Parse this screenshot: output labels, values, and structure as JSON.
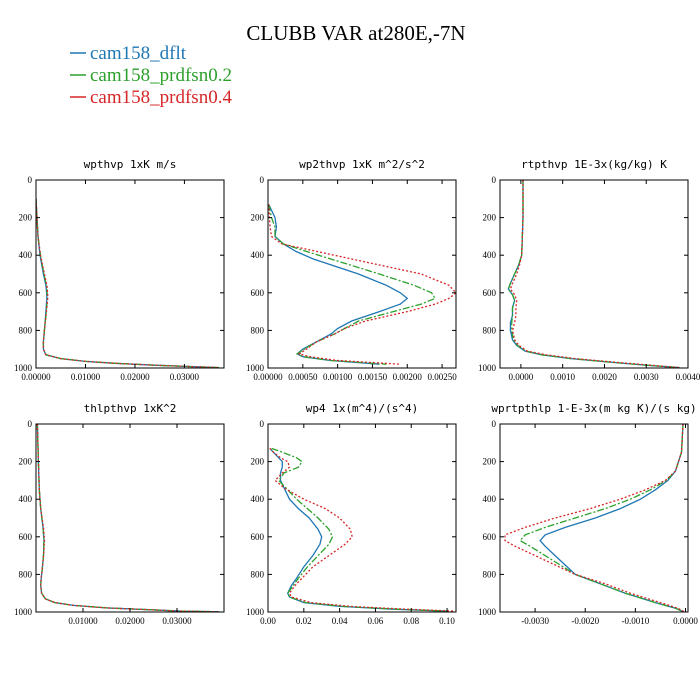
{
  "figure": {
    "title": "CLUBB VAR at280E,-7N",
    "legend": [
      {
        "label": "cam158_dflt",
        "color": "#1f77b4",
        "dash": "solid"
      },
      {
        "label": "cam158_prdfsn0.2",
        "color": "#2ca02c",
        "dash": "dashdot"
      },
      {
        "label": "cam158_prdfsn0.4",
        "color": "#d62728",
        "dash": "dotted"
      }
    ]
  },
  "chart_data": [
    {
      "type": "line",
      "title": "wpthvp  1xK m/s",
      "xlim": [
        0,
        0.038
      ],
      "ylim": [
        1000,
        0
      ],
      "xticks": [
        "0.00000",
        "0.01000",
        "0.02000",
        "0.03000"
      ],
      "xtick_values": [
        0,
        0.01,
        0.02,
        0.03
      ],
      "yticks": [
        0,
        200,
        400,
        600,
        800,
        1000
      ],
      "y": [
        100,
        200,
        300,
        400,
        500,
        560,
        620,
        700,
        800,
        860,
        900,
        930,
        950,
        965,
        975,
        985,
        992,
        998
      ],
      "series": [
        {
          "name": "cam158_dflt",
          "x": [
            0,
            0.0002,
            0.0004,
            0.0008,
            0.0015,
            0.002,
            0.0022,
            0.002,
            0.0017,
            0.0015,
            0.0015,
            0.002,
            0.005,
            0.01,
            0.016,
            0.024,
            0.031,
            0.037
          ]
        },
        {
          "name": "cam158_prdfsn0.2",
          "x": [
            0,
            0.0002,
            0.0004,
            0.0009,
            0.0016,
            0.0021,
            0.0023,
            0.0021,
            0.0017,
            0.0015,
            0.0015,
            0.002,
            0.005,
            0.01,
            0.016,
            0.024,
            0.031,
            0.037
          ]
        },
        {
          "name": "cam158_prdfsn0.4",
          "x": [
            0,
            0.0002,
            0.0004,
            0.0009,
            0.0017,
            0.0022,
            0.0024,
            0.0021,
            0.0017,
            0.0015,
            0.0015,
            0.002,
            0.005,
            0.01,
            0.016,
            0.024,
            0.031,
            0.037
          ]
        }
      ]
    },
    {
      "type": "line",
      "title": "wp2thvp  1xK m^2/s^2",
      "xlim": [
        0,
        0.0027
      ],
      "ylim": [
        1000,
        0
      ],
      "xticks": [
        "0.00000",
        "0.00050",
        "0.00100",
        "0.00150",
        "0.00200",
        "0.00250"
      ],
      "xtick_values": [
        0,
        0.0005,
        0.001,
        0.0015,
        0.002,
        0.0025
      ],
      "yticks": [
        0,
        200,
        400,
        600,
        800,
        1000
      ],
      "y": [
        130,
        200,
        250,
        300,
        340,
        380,
        420,
        500,
        560,
        600,
        630,
        660,
        700,
        750,
        790,
        820,
        860,
        900,
        925,
        940,
        960,
        980
      ],
      "series": [
        {
          "name": "cam158_dflt",
          "x": [
            1e-05,
            0.0001,
            0.00012,
            0.0001,
            0.00022,
            0.0004,
            0.00065,
            0.0013,
            0.0017,
            0.0019,
            0.002,
            0.0019,
            0.0016,
            0.0012,
            0.001,
            0.0009,
            0.0007,
            0.0005,
            0.00042,
            0.0005,
            0.0009,
            0.0016
          ]
        },
        {
          "name": "cam158_prdfsn0.2",
          "x": [
            1e-05,
            5e-05,
            0.0001,
            0.0001,
            0.00022,
            0.00055,
            0.0009,
            0.0016,
            0.0021,
            0.00235,
            0.0024,
            0.0022,
            0.0018,
            0.0013,
            0.0011,
            0.00095,
            0.0007,
            0.00052,
            0.00042,
            0.0005,
            0.0009,
            0.0017
          ]
        },
        {
          "name": "cam158_prdfsn0.4",
          "x": [
            1e-05,
            2e-05,
            3e-05,
            5e-05,
            0.0002,
            0.0007,
            0.0012,
            0.0022,
            0.0026,
            0.0027,
            0.0026,
            0.0024,
            0.002,
            0.0014,
            0.0011,
            0.00095,
            0.0007,
            0.00055,
            0.00045,
            0.0006,
            0.001,
            0.0019
          ]
        }
      ]
    },
    {
      "type": "line",
      "title": "rtpthvp  1E-3x(kg/kg) K",
      "xlim": [
        -0.0005,
        0.004
      ],
      "ylim": [
        1000,
        0
      ],
      "xticks": [
        "0.0000",
        "0.0010",
        "0.0020",
        "0.0030",
        "0.0040"
      ],
      "xtick_values": [
        0,
        0.001,
        0.002,
        0.003,
        0.004
      ],
      "yticks": [
        0,
        200,
        400,
        600,
        800,
        1000
      ],
      "y": [
        0,
        200,
        400,
        450,
        500,
        550,
        580,
        610,
        640,
        680,
        720,
        760,
        800,
        850,
        880,
        910,
        930,
        950,
        970,
        985,
        998
      ],
      "series": [
        {
          "name": "cam158_dflt",
          "x": [
            5e-05,
            5e-05,
            2e-05,
            -5e-05,
            -0.00015,
            -0.00025,
            -0.0003,
            -0.0002,
            -0.00015,
            -0.0002,
            -0.0002,
            -0.00025,
            -0.00025,
            -0.0002,
            -0.0001,
            0.0001,
            0.0005,
            0.0012,
            0.0022,
            0.003,
            0.0038
          ]
        },
        {
          "name": "cam158_prdfsn0.2",
          "x": [
            5e-05,
            5e-05,
            2e-05,
            -5e-05,
            -0.00015,
            -0.00025,
            -0.0003,
            -0.0002,
            -0.00015,
            -0.0002,
            -0.0002,
            -0.00022,
            -0.00022,
            -0.00018,
            -8e-05,
            0.00012,
            0.0005,
            0.0012,
            0.0022,
            0.003,
            0.0038
          ]
        },
        {
          "name": "cam158_prdfsn0.4",
          "x": [
            5e-05,
            5e-05,
            2e-05,
            -3e-05,
            -0.0001,
            -0.0002,
            -0.00025,
            -0.00015,
            -0.0001,
            -0.00012,
            -0.00012,
            -0.00015,
            -0.0002,
            -0.00015,
            -5e-05,
            0.00015,
            0.0006,
            0.0013,
            0.0023,
            0.0031,
            0.0038
          ]
        }
      ]
    },
    {
      "type": "line",
      "title": "thlpthvp  1xK^2",
      "xlim": [
        0,
        0.04
      ],
      "ylim": [
        1000,
        0
      ],
      "xticks": [
        "0.01000",
        "0.02000",
        "0.03000"
      ],
      "xtick_values": [
        0.01,
        0.02,
        0.03
      ],
      "yticks": [
        0,
        200,
        400,
        600,
        800,
        1000
      ],
      "y": [
        0,
        200,
        350,
        450,
        550,
        620,
        700,
        780,
        820,
        860,
        900,
        930,
        950,
        965,
        978,
        988,
        995,
        999
      ],
      "series": [
        {
          "name": "cam158_dflt",
          "x": [
            0.0003,
            0.0005,
            0.0007,
            0.001,
            0.0015,
            0.0017,
            0.0016,
            0.0013,
            0.0011,
            0.001,
            0.0012,
            0.002,
            0.004,
            0.008,
            0.015,
            0.024,
            0.031,
            0.039
          ]
        },
        {
          "name": "cam158_prdfsn0.2",
          "x": [
            0.0003,
            0.0005,
            0.0007,
            0.001,
            0.0015,
            0.0017,
            0.0016,
            0.0013,
            0.0011,
            0.001,
            0.0012,
            0.002,
            0.004,
            0.008,
            0.015,
            0.024,
            0.031,
            0.039
          ]
        },
        {
          "name": "cam158_prdfsn0.4",
          "x": [
            0.0003,
            0.0005,
            0.0007,
            0.001,
            0.0016,
            0.0018,
            0.0016,
            0.0013,
            0.0011,
            0.001,
            0.0012,
            0.002,
            0.004,
            0.008,
            0.015,
            0.024,
            0.031,
            0.039
          ]
        }
      ]
    },
    {
      "type": "line",
      "title": "wp4  1x(m^4)/(s^4)",
      "xlim": [
        0,
        0.105
      ],
      "ylim": [
        1000,
        0
      ],
      "xticks": [
        "0.00",
        "0.02",
        "0.04",
        "0.06",
        "0.08",
        "0.10"
      ],
      "xtick_values": [
        0,
        0.02,
        0.04,
        0.06,
        0.08,
        0.1
      ],
      "yticks": [
        0,
        200,
        400,
        600,
        800,
        1000
      ],
      "y": [
        130,
        150,
        180,
        200,
        230,
        260,
        300,
        340,
        400,
        450,
        500,
        560,
        600,
        640,
        700,
        760,
        820,
        860,
        900,
        920,
        950,
        970,
        985,
        995
      ],
      "series": [
        {
          "name": "cam158_dflt",
          "x": [
            0.001,
            0.003,
            0.006,
            0.008,
            0.008,
            0.007,
            0.007,
            0.009,
            0.012,
            0.017,
            0.023,
            0.028,
            0.03,
            0.029,
            0.025,
            0.02,
            0.016,
            0.013,
            0.011,
            0.012,
            0.02,
            0.04,
            0.07,
            0.1
          ]
        },
        {
          "name": "cam158_prdfsn0.2",
          "x": [
            0.002,
            0.008,
            0.016,
            0.019,
            0.017,
            0.009,
            0.006,
            0.01,
            0.016,
            0.022,
            0.028,
            0.034,
            0.036,
            0.034,
            0.028,
            0.022,
            0.017,
            0.014,
            0.011,
            0.012,
            0.021,
            0.042,
            0.072,
            0.1
          ]
        },
        {
          "name": "cam158_prdfsn0.4",
          "x": [
            0.001,
            0.003,
            0.007,
            0.011,
            0.012,
            0.008,
            0.004,
            0.009,
            0.02,
            0.032,
            0.04,
            0.046,
            0.047,
            0.043,
            0.034,
            0.025,
            0.019,
            0.015,
            0.012,
            0.013,
            0.024,
            0.046,
            0.077,
            0.104
          ]
        }
      ]
    },
    {
      "type": "line",
      "title": "wprtpthlp  1-E-3x(m kg K)/(s kg)",
      "xlim": [
        -0.0037,
        5e-05
      ],
      "ylim": [
        1000,
        0
      ],
      "xticks": [
        "-0.0030",
        "-0.0020",
        "-0.0010",
        "0.0000"
      ],
      "xtick_values": [
        -0.003,
        -0.002,
        -0.001,
        0
      ],
      "yticks": [
        0,
        200,
        400,
        600,
        800,
        1000
      ],
      "y": [
        0,
        150,
        250,
        300,
        350,
        400,
        450,
        500,
        550,
        590,
        620,
        650,
        700,
        750,
        800,
        850,
        900,
        950,
        980,
        998
      ],
      "series": [
        {
          "name": "cam158_dflt",
          "x": [
            -5e-05,
            -8e-05,
            -0.0002,
            -0.00035,
            -0.0006,
            -0.0009,
            -0.0013,
            -0.0018,
            -0.0024,
            -0.0028,
            -0.0029,
            -0.0028,
            -0.0026,
            -0.0024,
            -0.0022,
            -0.0017,
            -0.0012,
            -0.0006,
            -0.0002,
            -5e-05
          ]
        },
        {
          "name": "cam158_prdfsn0.2",
          "x": [
            -5e-05,
            -8e-05,
            -0.0002,
            -0.00038,
            -0.0007,
            -0.0011,
            -0.0016,
            -0.0022,
            -0.0028,
            -0.0032,
            -0.0033,
            -0.0031,
            -0.0028,
            -0.0025,
            -0.0022,
            -0.0017,
            -0.0012,
            -0.0006,
            -0.0002,
            -5e-05
          ]
        },
        {
          "name": "cam158_prdfsn0.4",
          "x": [
            -5e-05,
            -8e-05,
            -0.0002,
            -0.0004,
            -0.0008,
            -0.0013,
            -0.0019,
            -0.0026,
            -0.0032,
            -0.0036,
            -0.0036,
            -0.0034,
            -0.003,
            -0.0026,
            -0.0022,
            -0.0016,
            -0.0011,
            -0.0005,
            -0.00015,
            -3e-05
          ]
        }
      ]
    }
  ]
}
